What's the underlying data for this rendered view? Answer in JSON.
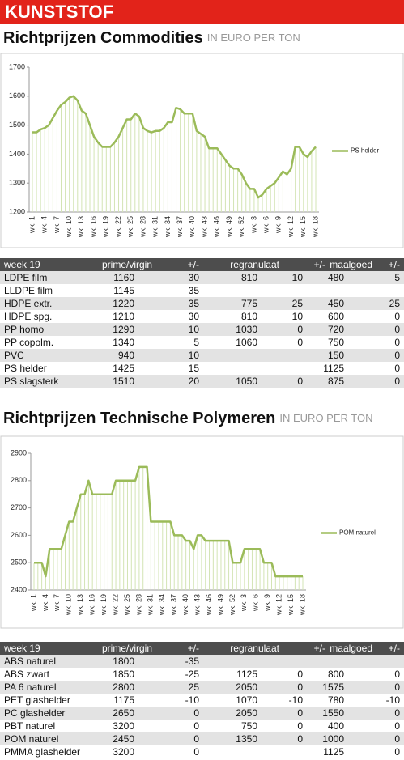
{
  "header": {
    "section": "KUNSTSTOF"
  },
  "sections": [
    {
      "title": "Richtprijzen Commodities",
      "unit": "IN EURO PER TON"
    },
    {
      "title": "Richtprijzen Technische Polymeren",
      "unit": "IN EURO PER TON"
    }
  ],
  "chart_data": [
    {
      "type": "line",
      "legend": "right",
      "categories": [
        "wk. 1",
        null,
        null,
        "wk. 4",
        null,
        null,
        "wk. 7",
        null,
        null,
        "wk. 10",
        null,
        null,
        "wk. 13",
        null,
        null,
        "wk. 16",
        null,
        null,
        "wk. 19",
        null,
        null,
        "wk. 22",
        null,
        null,
        "wk. 25",
        null,
        null,
        "wk. 28",
        null,
        null,
        "wk. 31",
        null,
        null,
        "wk. 34",
        null,
        null,
        "wk. 37",
        null,
        null,
        "wk. 40",
        null,
        null,
        "wk. 43",
        null,
        null,
        "wk. 46",
        null,
        null,
        "wk. 49",
        null,
        null,
        "wk. 52",
        null,
        null,
        "wk. 3",
        null,
        null,
        "wk. 6",
        null,
        null,
        "wk. 9",
        null,
        null,
        "wk. 12",
        null,
        null,
        "wk. 15",
        null,
        null,
        "wk. 18"
      ],
      "series": [
        {
          "name": "PS helder",
          "color": "#9bbb59",
          "values": [
            1475,
            1475,
            1485,
            1490,
            1500,
            1525,
            1550,
            1570,
            1580,
            1595,
            1600,
            1585,
            1550,
            1540,
            1500,
            1460,
            1440,
            1425,
            1425,
            1425,
            1440,
            1460,
            1490,
            1520,
            1520,
            1540,
            1530,
            1490,
            1480,
            1475,
            1480,
            1480,
            1490,
            1510,
            1510,
            1560,
            1555,
            1540,
            1540,
            1540,
            1480,
            1470,
            1460,
            1420,
            1420,
            1420,
            1400,
            1380,
            1360,
            1350,
            1350,
            1330,
            1300,
            1280,
            1280,
            1250,
            1260,
            1280,
            1290,
            1300,
            1320,
            1340,
            1330,
            1350,
            1425,
            1425,
            1400,
            1390,
            1410,
            1425
          ]
        }
      ],
      "ylim": [
        1200,
        1700
      ],
      "yticks": [
        1200,
        1300,
        1400,
        1500,
        1600,
        1700
      ]
    },
    {
      "type": "line",
      "legend": "right",
      "categories": [
        "wk. 1",
        null,
        null,
        "wk. 4",
        null,
        null,
        "wk. 7",
        null,
        null,
        "wk. 10",
        null,
        null,
        "wk. 13",
        null,
        null,
        "wk. 16",
        null,
        null,
        "wk. 19",
        null,
        null,
        "wk. 22",
        null,
        null,
        "wk. 25",
        null,
        null,
        "wk. 28",
        null,
        null,
        "wk. 31",
        null,
        null,
        "wk. 34",
        null,
        null,
        "wk. 37",
        null,
        null,
        "wk. 40",
        null,
        null,
        "wk. 43",
        null,
        null,
        "wk. 46",
        null,
        null,
        "wk. 49",
        null,
        null,
        "wk. 52",
        null,
        null,
        "wk. 3",
        null,
        null,
        "wk. 6",
        null,
        null,
        "wk. 9",
        null,
        null,
        "wk. 12",
        null,
        null,
        "wk. 15",
        null,
        null,
        "wk. 18"
      ],
      "series": [
        {
          "name": "POM naturel",
          "color": "#9bbb59",
          "values": [
            2500,
            2500,
            2500,
            2450,
            2550,
            2550,
            2550,
            2550,
            2600,
            2650,
            2650,
            2700,
            2750,
            2750,
            2800,
            2750,
            2750,
            2750,
            2750,
            2750,
            2750,
            2800,
            2800,
            2800,
            2800,
            2800,
            2800,
            2850,
            2850,
            2850,
            2650,
            2650,
            2650,
            2650,
            2650,
            2650,
            2600,
            2600,
            2600,
            2580,
            2580,
            2550,
            2600,
            2600,
            2580,
            2580,
            2580,
            2580,
            2580,
            2580,
            2580,
            2500,
            2500,
            2500,
            2550,
            2550,
            2550,
            2550,
            2550,
            2500,
            2500,
            2500,
            2450,
            2450,
            2450,
            2450,
            2450,
            2450,
            2450,
            2450
          ]
        }
      ],
      "ylim": [
        2400,
        2900
      ],
      "yticks": [
        2400,
        2500,
        2600,
        2700,
        2800,
        2900
      ]
    }
  ],
  "tables": [
    {
      "columns": [
        "week 19",
        "prime/virgin",
        "+/-",
        "regranulaat",
        "+/-",
        "maalgoed",
        "+/-"
      ],
      "rows": [
        [
          "LDPE film",
          1160,
          30,
          810,
          10,
          480,
          5
        ],
        [
          "LLDPE film",
          1145,
          35,
          null,
          null,
          null,
          null
        ],
        [
          "HDPE extr.",
          1220,
          35,
          775,
          25,
          450,
          25
        ],
        [
          "HDPE spg.",
          1210,
          30,
          810,
          10,
          600,
          0
        ],
        [
          "PP homo",
          1290,
          10,
          1030,
          0,
          720,
          0
        ],
        [
          "PP copolm.",
          1340,
          5,
          1060,
          0,
          750,
          0
        ],
        [
          "PVC",
          940,
          10,
          null,
          null,
          150,
          0
        ],
        [
          "PS helder",
          1425,
          15,
          null,
          null,
          1125,
          0
        ],
        [
          "PS slagsterk",
          1510,
          20,
          1050,
          0,
          875,
          0
        ]
      ]
    },
    {
      "columns": [
        "week 19",
        "prime/virgin",
        "+/-",
        "regranulaat",
        "+/-",
        "maalgoed",
        "+/-"
      ],
      "rows": [
        [
          "ABS naturel",
          1800,
          -35,
          null,
          null,
          null,
          null
        ],
        [
          "ABS zwart",
          1850,
          -25,
          1125,
          0,
          800,
          0
        ],
        [
          "PA 6 naturel",
          2800,
          25,
          2050,
          0,
          1575,
          0
        ],
        [
          "PET glashelder",
          1175,
          -10,
          1070,
          -10,
          780,
          -10
        ],
        [
          "PC glashelder",
          2650,
          0,
          2050,
          0,
          1550,
          0
        ],
        [
          "PBT naturel",
          3200,
          0,
          750,
          0,
          400,
          0
        ],
        [
          "POM naturel",
          2450,
          0,
          1350,
          0,
          1000,
          0
        ],
        [
          "PMMA glashelder",
          3200,
          0,
          null,
          null,
          1125,
          0
        ]
      ]
    }
  ]
}
